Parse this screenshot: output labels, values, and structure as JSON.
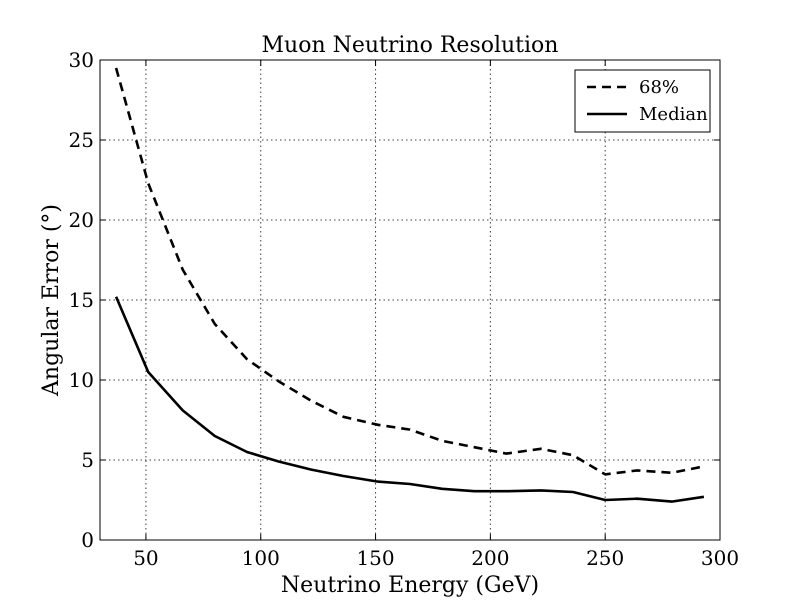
{
  "chart_data": {
    "type": "line",
    "title": "Muon Neutrino Resolution",
    "xlabel": "Neutrino Energy (GeV)",
    "ylabel": "Angular Error (°)",
    "xlim": [
      30,
      300
    ],
    "ylim": [
      0,
      30
    ],
    "xticks": [
      50,
      100,
      150,
      200,
      250,
      300
    ],
    "yticks": [
      0,
      5,
      10,
      15,
      20,
      25,
      30
    ],
    "grid": true,
    "legend_position": "top-right",
    "series": [
      {
        "name": "68%",
        "style": "dashed",
        "color": "#000000",
        "x": [
          37,
          51,
          66,
          80,
          94,
          108,
          122,
          136,
          151,
          165,
          179,
          193,
          207,
          222,
          236,
          250,
          264,
          279,
          293
        ],
        "y": [
          29.5,
          22.3,
          16.9,
          13.5,
          11.3,
          9.9,
          8.7,
          7.7,
          7.2,
          6.9,
          6.2,
          5.8,
          5.4,
          5.7,
          5.3,
          4.1,
          4.35,
          4.2,
          4.6
        ]
      },
      {
        "name": "Median",
        "style": "solid",
        "color": "#000000",
        "x": [
          37,
          51,
          66,
          80,
          94,
          108,
          122,
          136,
          151,
          165,
          179,
          193,
          207,
          222,
          236,
          250,
          264,
          279,
          293
        ],
        "y": [
          15.2,
          10.5,
          8.1,
          6.5,
          5.5,
          4.9,
          4.4,
          4.0,
          3.65,
          3.5,
          3.2,
          3.05,
          3.05,
          3.1,
          3.0,
          2.5,
          2.58,
          2.4,
          2.7
        ]
      }
    ]
  }
}
